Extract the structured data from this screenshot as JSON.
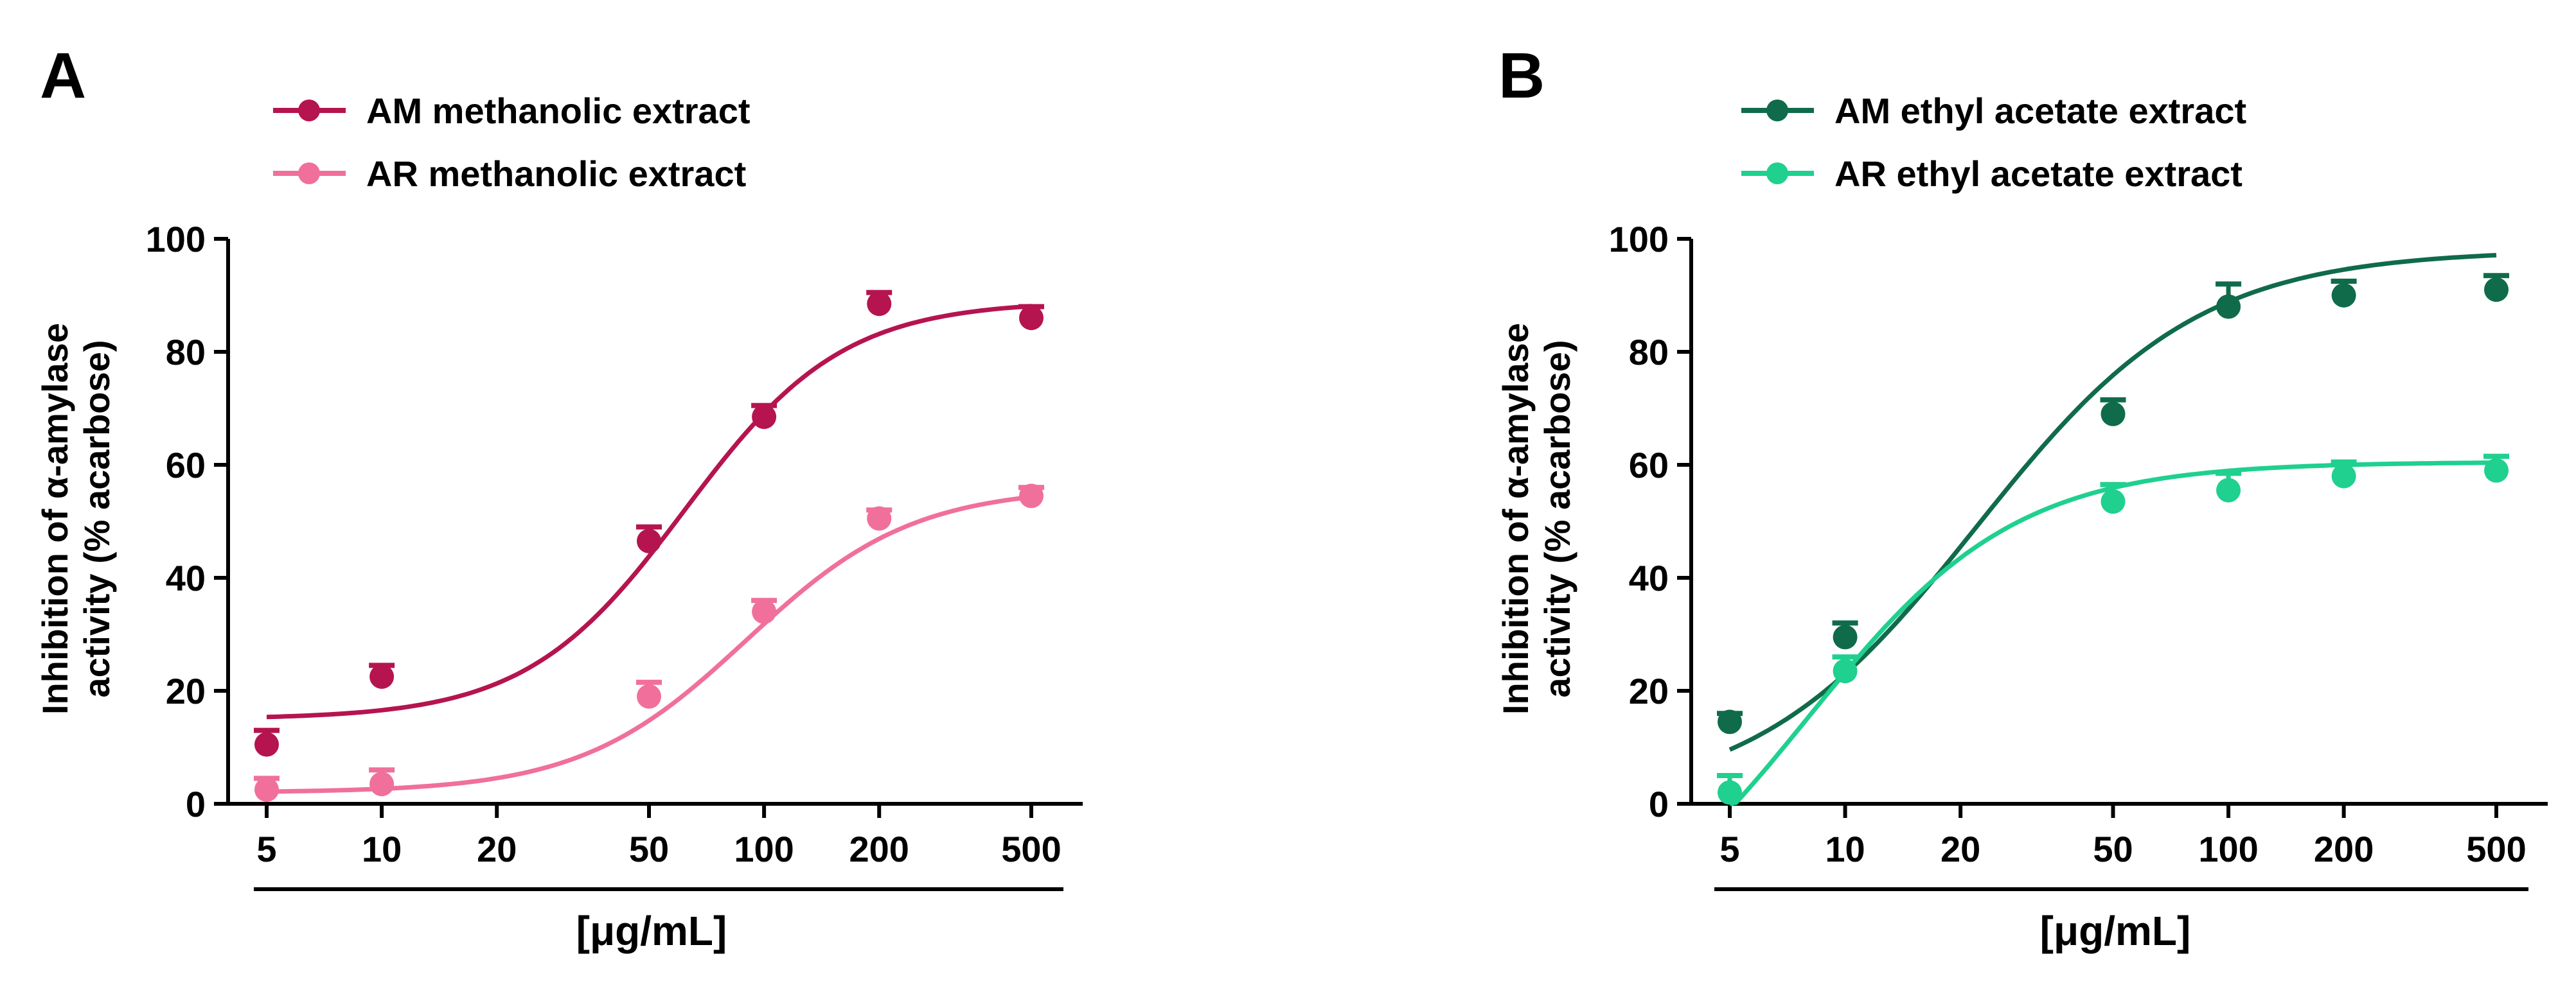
{
  "chart_data": [
    {
      "type": "scatter",
      "panel_label": "A",
      "x_scale": "log",
      "xlabel": "[μg/mL]",
      "ylabel_lines": [
        "Inhibition of α-amylase",
        "activity (% acarbose)"
      ],
      "ylim": [
        0,
        100
      ],
      "yticks": [
        "0",
        "20",
        "40",
        "60",
        "80",
        "100"
      ],
      "xticks": [
        "5",
        "10",
        "20",
        "50",
        "100",
        "200",
        "500"
      ],
      "legend_position": "top",
      "series": [
        {
          "name": "AM methanolic extract",
          "color": "#B5144F",
          "x": [
            5,
            10,
            50,
            100,
            200,
            500
          ],
          "values": [
            10.5,
            22.5,
            46.5,
            68.5,
            88.5,
            86
          ],
          "error_top": [
            13,
            24.5,
            49,
            70.5,
            90.5,
            88
          ],
          "fit": {
            "bottom": 15,
            "top": 89,
            "ec50": 62,
            "hill": 2.1
          }
        },
        {
          "name": "AR methanolic extract",
          "color": "#F0709B",
          "x": [
            5,
            10,
            50,
            100,
            200,
            500
          ],
          "values": [
            2.5,
            3.5,
            19,
            34,
            50.5,
            54.5
          ],
          "error_top": [
            4.5,
            6,
            21.5,
            36,
            52,
            56
          ],
          "fit": {
            "bottom": 2,
            "top": 56,
            "ec50": 90,
            "hill": 2.0
          }
        }
      ]
    },
    {
      "type": "scatter",
      "panel_label": "B",
      "x_scale": "log",
      "xlabel": "[μg/mL]",
      "ylabel_lines": [
        "Inhibition of α-amylase",
        "activity (% acarbose)"
      ],
      "ylim": [
        0,
        100
      ],
      "yticks": [
        "0",
        "20",
        "40",
        "60",
        "80",
        "100"
      ],
      "xticks": [
        "5",
        "10",
        "20",
        "50",
        "100",
        "200",
        "500"
      ],
      "legend_position": "top",
      "series": [
        {
          "name": "AM ethyl acetate extract",
          "color": "#0F6B4A",
          "x": [
            5,
            10,
            50,
            100,
            200,
            500
          ],
          "values": [
            14.5,
            29.5,
            69,
            88,
            90,
            91
          ],
          "error_top": [
            16,
            32,
            71.5,
            92,
            92.5,
            93.5
          ],
          "fit": {
            "bottom": 0,
            "top": 98,
            "ec50": 22,
            "hill": 1.5
          }
        },
        {
          "name": "AR ethyl acetate extract",
          "color": "#1FD08F",
          "x": [
            5,
            10,
            50,
            100,
            200,
            500
          ],
          "values": [
            2,
            23.5,
            53.5,
            55.5,
            58,
            59
          ],
          "error_top": [
            5,
            26,
            56.5,
            58.5,
            60.5,
            61.5
          ],
          "fit": {
            "bottom": -30,
            "top": 60.5,
            "ec50": 8,
            "hill": 1.6
          }
        }
      ]
    }
  ]
}
